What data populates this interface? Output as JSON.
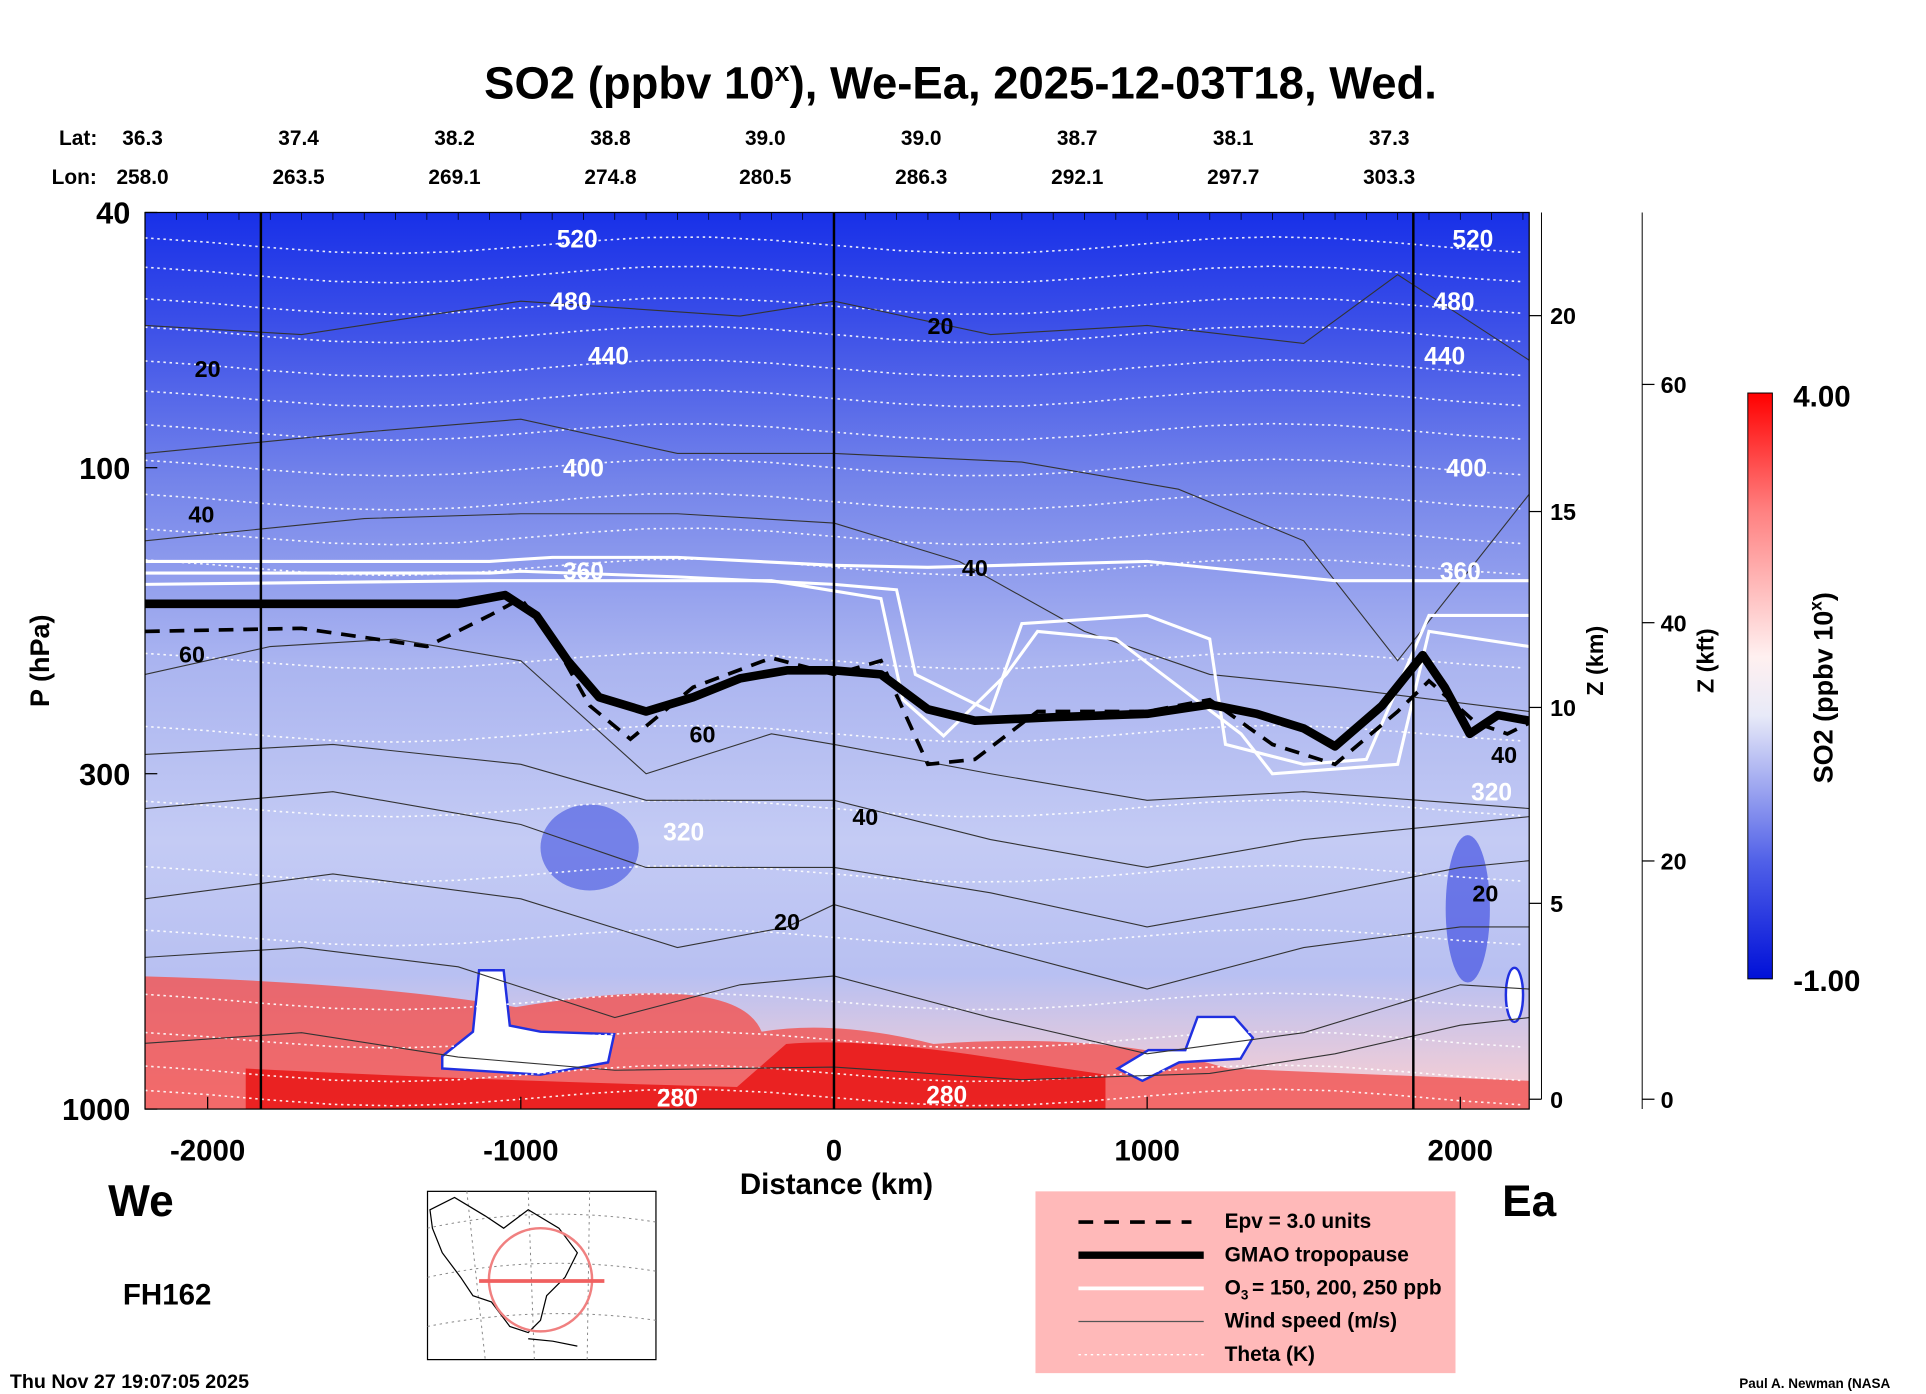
{
  "chart_data": {
    "type": "heatmap",
    "title": "SO2 (ppbv 10",
    "title_sup": "x",
    "title_rest": "), We-Ea, 2025-12-03T18, Wed.",
    "xlabel": "Distance (km)",
    "ylabel": "P (hPa)",
    "y2label": "Z (km)",
    "y3label": "Z (kft)",
    "xlim": [
      -2200,
      2220
    ],
    "ylim_hpa": [
      1000,
      40
    ],
    "x_ticks": [
      "-2000",
      "-1000",
      "0",
      "1000",
      "2000"
    ],
    "x_tick_values": [
      -2000,
      -1000,
      0,
      1000,
      2000
    ],
    "y_ticks": [
      "40",
      "100",
      "300",
      "1000"
    ],
    "y_tick_values": [
      40,
      100,
      300,
      1000
    ],
    "z_km_ticks": [
      "0",
      "5",
      "10",
      "15",
      "20"
    ],
    "z_km_values": [
      0,
      5,
      10,
      15,
      20
    ],
    "z_kft_ticks": [
      "0",
      "20",
      "40",
      "60"
    ],
    "z_kft_values": [
      0,
      20,
      40,
      60
    ],
    "vertical_lines_km": [
      -1830,
      0,
      1850
    ],
    "lat_label": "Lat:",
    "lon_label": "Lon:",
    "lat": [
      "36.3",
      "37.4",
      "38.2",
      "38.8",
      "39.0",
      "39.0",
      "38.7",
      "38.1",
      "37.3"
    ],
    "lon": [
      "258.0",
      "263.5",
      "269.1",
      "274.8",
      "280.5",
      "286.3",
      "292.1",
      "297.7",
      "303.3"
    ],
    "left_end": "We",
    "right_end": "Ea",
    "colorbar": {
      "label": "SO2 (ppbv 10",
      "label_sup": "x",
      "label_end": ")",
      "max": "4.00",
      "min": "-1.00",
      "low_color": "#0010e0",
      "mid_color": "#ffffff",
      "high_color": "#ff0000"
    },
    "theta_labels": [
      {
        "text": "520",
        "x": -820,
        "p": 44
      },
      {
        "text": "520",
        "x": 2040,
        "p": 44
      },
      {
        "text": "480",
        "x": -840,
        "p": 55
      },
      {
        "text": "480",
        "x": 1980,
        "p": 55
      },
      {
        "text": "440",
        "x": -720,
        "p": 67
      },
      {
        "text": "440",
        "x": 1950,
        "p": 67
      },
      {
        "text": "400",
        "x": -800,
        "p": 100
      },
      {
        "text": "400",
        "x": 2020,
        "p": 100
      },
      {
        "text": "360",
        "x": -800,
        "p": 145
      },
      {
        "text": "360",
        "x": 2000,
        "p": 145
      },
      {
        "text": "320",
        "x": -480,
        "p": 370
      },
      {
        "text": "320",
        "x": 2100,
        "p": 320
      },
      {
        "text": "280",
        "x": -500,
        "p": 960
      },
      {
        "text": "280",
        "x": 360,
        "p": 950
      }
    ],
    "theta_levels_hpa": [
      45,
      50,
      56,
      62,
      70,
      78,
      88,
      100,
      113,
      128,
      143,
      200,
      260,
      340,
      430,
      540,
      680,
      780,
      880,
      960
    ],
    "wind_labels": [
      {
        "text": "20",
        "x": -2000,
        "p": 70
      },
      {
        "text": "20",
        "x": 340,
        "p": 60
      },
      {
        "text": "40",
        "x": -2020,
        "p": 118
      },
      {
        "text": "40",
        "x": 450,
        "p": 143
      },
      {
        "text": "60",
        "x": -2050,
        "p": 195
      },
      {
        "text": "60",
        "x": -420,
        "p": 260
      },
      {
        "text": "40",
        "x": 100,
        "p": 350
      },
      {
        "text": "20",
        "x": -150,
        "p": 510
      },
      {
        "text": "40",
        "x": 2140,
        "p": 280
      },
      {
        "text": "20",
        "x": 2080,
        "p": 460
      }
    ],
    "tropopause": [
      [
        -2200,
        163
      ],
      [
        -1200,
        163
      ],
      [
        -1050,
        158
      ],
      [
        -950,
        170
      ],
      [
        -850,
        200
      ],
      [
        -750,
        228
      ],
      [
        -600,
        240
      ],
      [
        -450,
        228
      ],
      [
        -300,
        213
      ],
      [
        -150,
        207
      ],
      [
        0,
        207
      ],
      [
        150,
        210
      ],
      [
        300,
        238
      ],
      [
        450,
        248
      ],
      [
        700,
        245
      ],
      [
        1000,
        242
      ],
      [
        1200,
        234
      ],
      [
        1350,
        242
      ],
      [
        1500,
        255
      ],
      [
        1600,
        272
      ],
      [
        1750,
        235
      ],
      [
        1880,
        196
      ],
      [
        1950,
        220
      ],
      [
        2030,
        260
      ],
      [
        2120,
        243
      ],
      [
        2220,
        248
      ]
    ],
    "epv": [
      [
        -2200,
        180
      ],
      [
        -1700,
        178
      ],
      [
        -1300,
        190
      ],
      [
        -1100,
        170
      ],
      [
        -1000,
        160
      ],
      [
        -900,
        185
      ],
      [
        -780,
        235
      ],
      [
        -650,
        265
      ],
      [
        -450,
        220
      ],
      [
        -200,
        198
      ],
      [
        0,
        210
      ],
      [
        150,
        200
      ],
      [
        300,
        290
      ],
      [
        450,
        285
      ],
      [
        650,
        240
      ],
      [
        1000,
        240
      ],
      [
        1200,
        230
      ],
      [
        1400,
        270
      ],
      [
        1600,
        290
      ],
      [
        1800,
        240
      ],
      [
        1900,
        215
      ],
      [
        2050,
        250
      ],
      [
        2150,
        260
      ],
      [
        2220,
        250
      ]
    ],
    "o3_lines": [
      [
        [
          -2200,
          140
        ],
        [
          -1100,
          140
        ],
        [
          -900,
          138
        ],
        [
          -500,
          138
        ],
        [
          0,
          142
        ],
        [
          300,
          143
        ],
        [
          1000,
          140
        ],
        [
          1600,
          150
        ],
        [
          2220,
          150
        ]
      ],
      [
        [
          -2200,
          146
        ],
        [
          -1100,
          146
        ],
        [
          -1000,
          145
        ],
        [
          -500,
          148
        ],
        [
          0,
          152
        ],
        [
          200,
          155
        ],
        [
          260,
          210
        ],
        [
          500,
          240
        ],
        [
          600,
          175
        ],
        [
          1000,
          170
        ],
        [
          1200,
          185
        ],
        [
          1250,
          270
        ],
        [
          1500,
          290
        ],
        [
          1700,
          285
        ],
        [
          1900,
          170
        ],
        [
          2220,
          170
        ]
      ],
      [
        [
          -2200,
          152
        ],
        [
          -1100,
          150
        ],
        [
          -700,
          150
        ],
        [
          -200,
          150
        ],
        [
          150,
          160
        ],
        [
          220,
          230
        ],
        [
          350,
          262
        ],
        [
          550,
          210
        ],
        [
          650,
          180
        ],
        [
          900,
          185
        ],
        [
          1300,
          260
        ],
        [
          1400,
          300
        ],
        [
          1800,
          290
        ],
        [
          1900,
          180
        ],
        [
          2220,
          190
        ]
      ]
    ],
    "wind_lines": [
      [
        [
          -2200,
          60
        ],
        [
          -1700,
          62
        ],
        [
          -1000,
          55
        ],
        [
          -300,
          58
        ],
        [
          0,
          55
        ],
        [
          500,
          62
        ],
        [
          1000,
          60
        ],
        [
          1500,
          64
        ],
        [
          1800,
          50
        ],
        [
          2220,
          68
        ]
      ],
      [
        [
          -2200,
          95
        ],
        [
          -1500,
          88
        ],
        [
          -1000,
          84
        ],
        [
          -500,
          95
        ],
        [
          0,
          95
        ],
        [
          600,
          98
        ],
        [
          1100,
          108
        ],
        [
          1500,
          130
        ],
        [
          1800,
          200
        ],
        [
          2220,
          110
        ]
      ],
      [
        [
          -2200,
          130
        ],
        [
          -1500,
          120
        ],
        [
          -1000,
          118
        ],
        [
          -500,
          118
        ],
        [
          0,
          122
        ],
        [
          400,
          140
        ],
        [
          800,
          180
        ],
        [
          1200,
          210
        ],
        [
          1600,
          220
        ],
        [
          2220,
          240
        ]
      ],
      [
        [
          -2200,
          210
        ],
        [
          -1800,
          190
        ],
        [
          -1400,
          185
        ],
        [
          -1000,
          200
        ],
        [
          -600,
          300
        ],
        [
          -200,
          260
        ],
        [
          0,
          270
        ],
        [
          500,
          300
        ],
        [
          1000,
          330
        ],
        [
          1500,
          320
        ],
        [
          2220,
          340
        ]
      ],
      [
        [
          -2200,
          280
        ],
        [
          -1600,
          270
        ],
        [
          -1000,
          290
        ],
        [
          -600,
          330
        ],
        [
          0,
          330
        ],
        [
          500,
          380
        ],
        [
          1000,
          420
        ],
        [
          1500,
          380
        ],
        [
          2220,
          350
        ]
      ],
      [
        [
          -2200,
          340
        ],
        [
          -1600,
          320
        ],
        [
          -1000,
          360
        ],
        [
          -600,
          420
        ],
        [
          0,
          420
        ],
        [
          500,
          460
        ],
        [
          1000,
          520
        ],
        [
          1500,
          470
        ],
        [
          2000,
          420
        ],
        [
          2220,
          410
        ]
      ],
      [
        [
          -2200,
          470
        ],
        [
          -1600,
          430
        ],
        [
          -1000,
          470
        ],
        [
          -500,
          560
        ],
        [
          -150,
          520
        ],
        [
          0,
          480
        ],
        [
          500,
          560
        ],
        [
          1000,
          650
        ],
        [
          1500,
          560
        ],
        [
          2000,
          520
        ],
        [
          2220,
          520
        ]
      ],
      [
        [
          -2200,
          580
        ],
        [
          -1700,
          560
        ],
        [
          -1200,
          600
        ],
        [
          -700,
          720
        ],
        [
          -300,
          640
        ],
        [
          0,
          620
        ],
        [
          500,
          720
        ],
        [
          1000,
          820
        ],
        [
          1500,
          760
        ],
        [
          2000,
          640
        ],
        [
          2220,
          650
        ]
      ],
      [
        [
          -2200,
          790
        ],
        [
          -1700,
          760
        ],
        [
          -1200,
          830
        ],
        [
          -700,
          870
        ],
        [
          0,
          860
        ],
        [
          600,
          900
        ],
        [
          1200,
          880
        ],
        [
          1600,
          820
        ],
        [
          2000,
          740
        ],
        [
          2220,
          720
        ]
      ]
    ],
    "legend": {
      "items": [
        "Epv = 3.0 units",
        "GMAO tropopause",
        "O",
        "= 150, 200, 250 ppb",
        "Wind speed (m/s)",
        "Theta (K)"
      ],
      "o3_sub": "3",
      "background": "#ffb9b9"
    },
    "forecast_hour": "FH162",
    "timestamp": "Thu Nov 27 19:07:05 2025",
    "credit": "Paul A. Newman (NASA"
  }
}
